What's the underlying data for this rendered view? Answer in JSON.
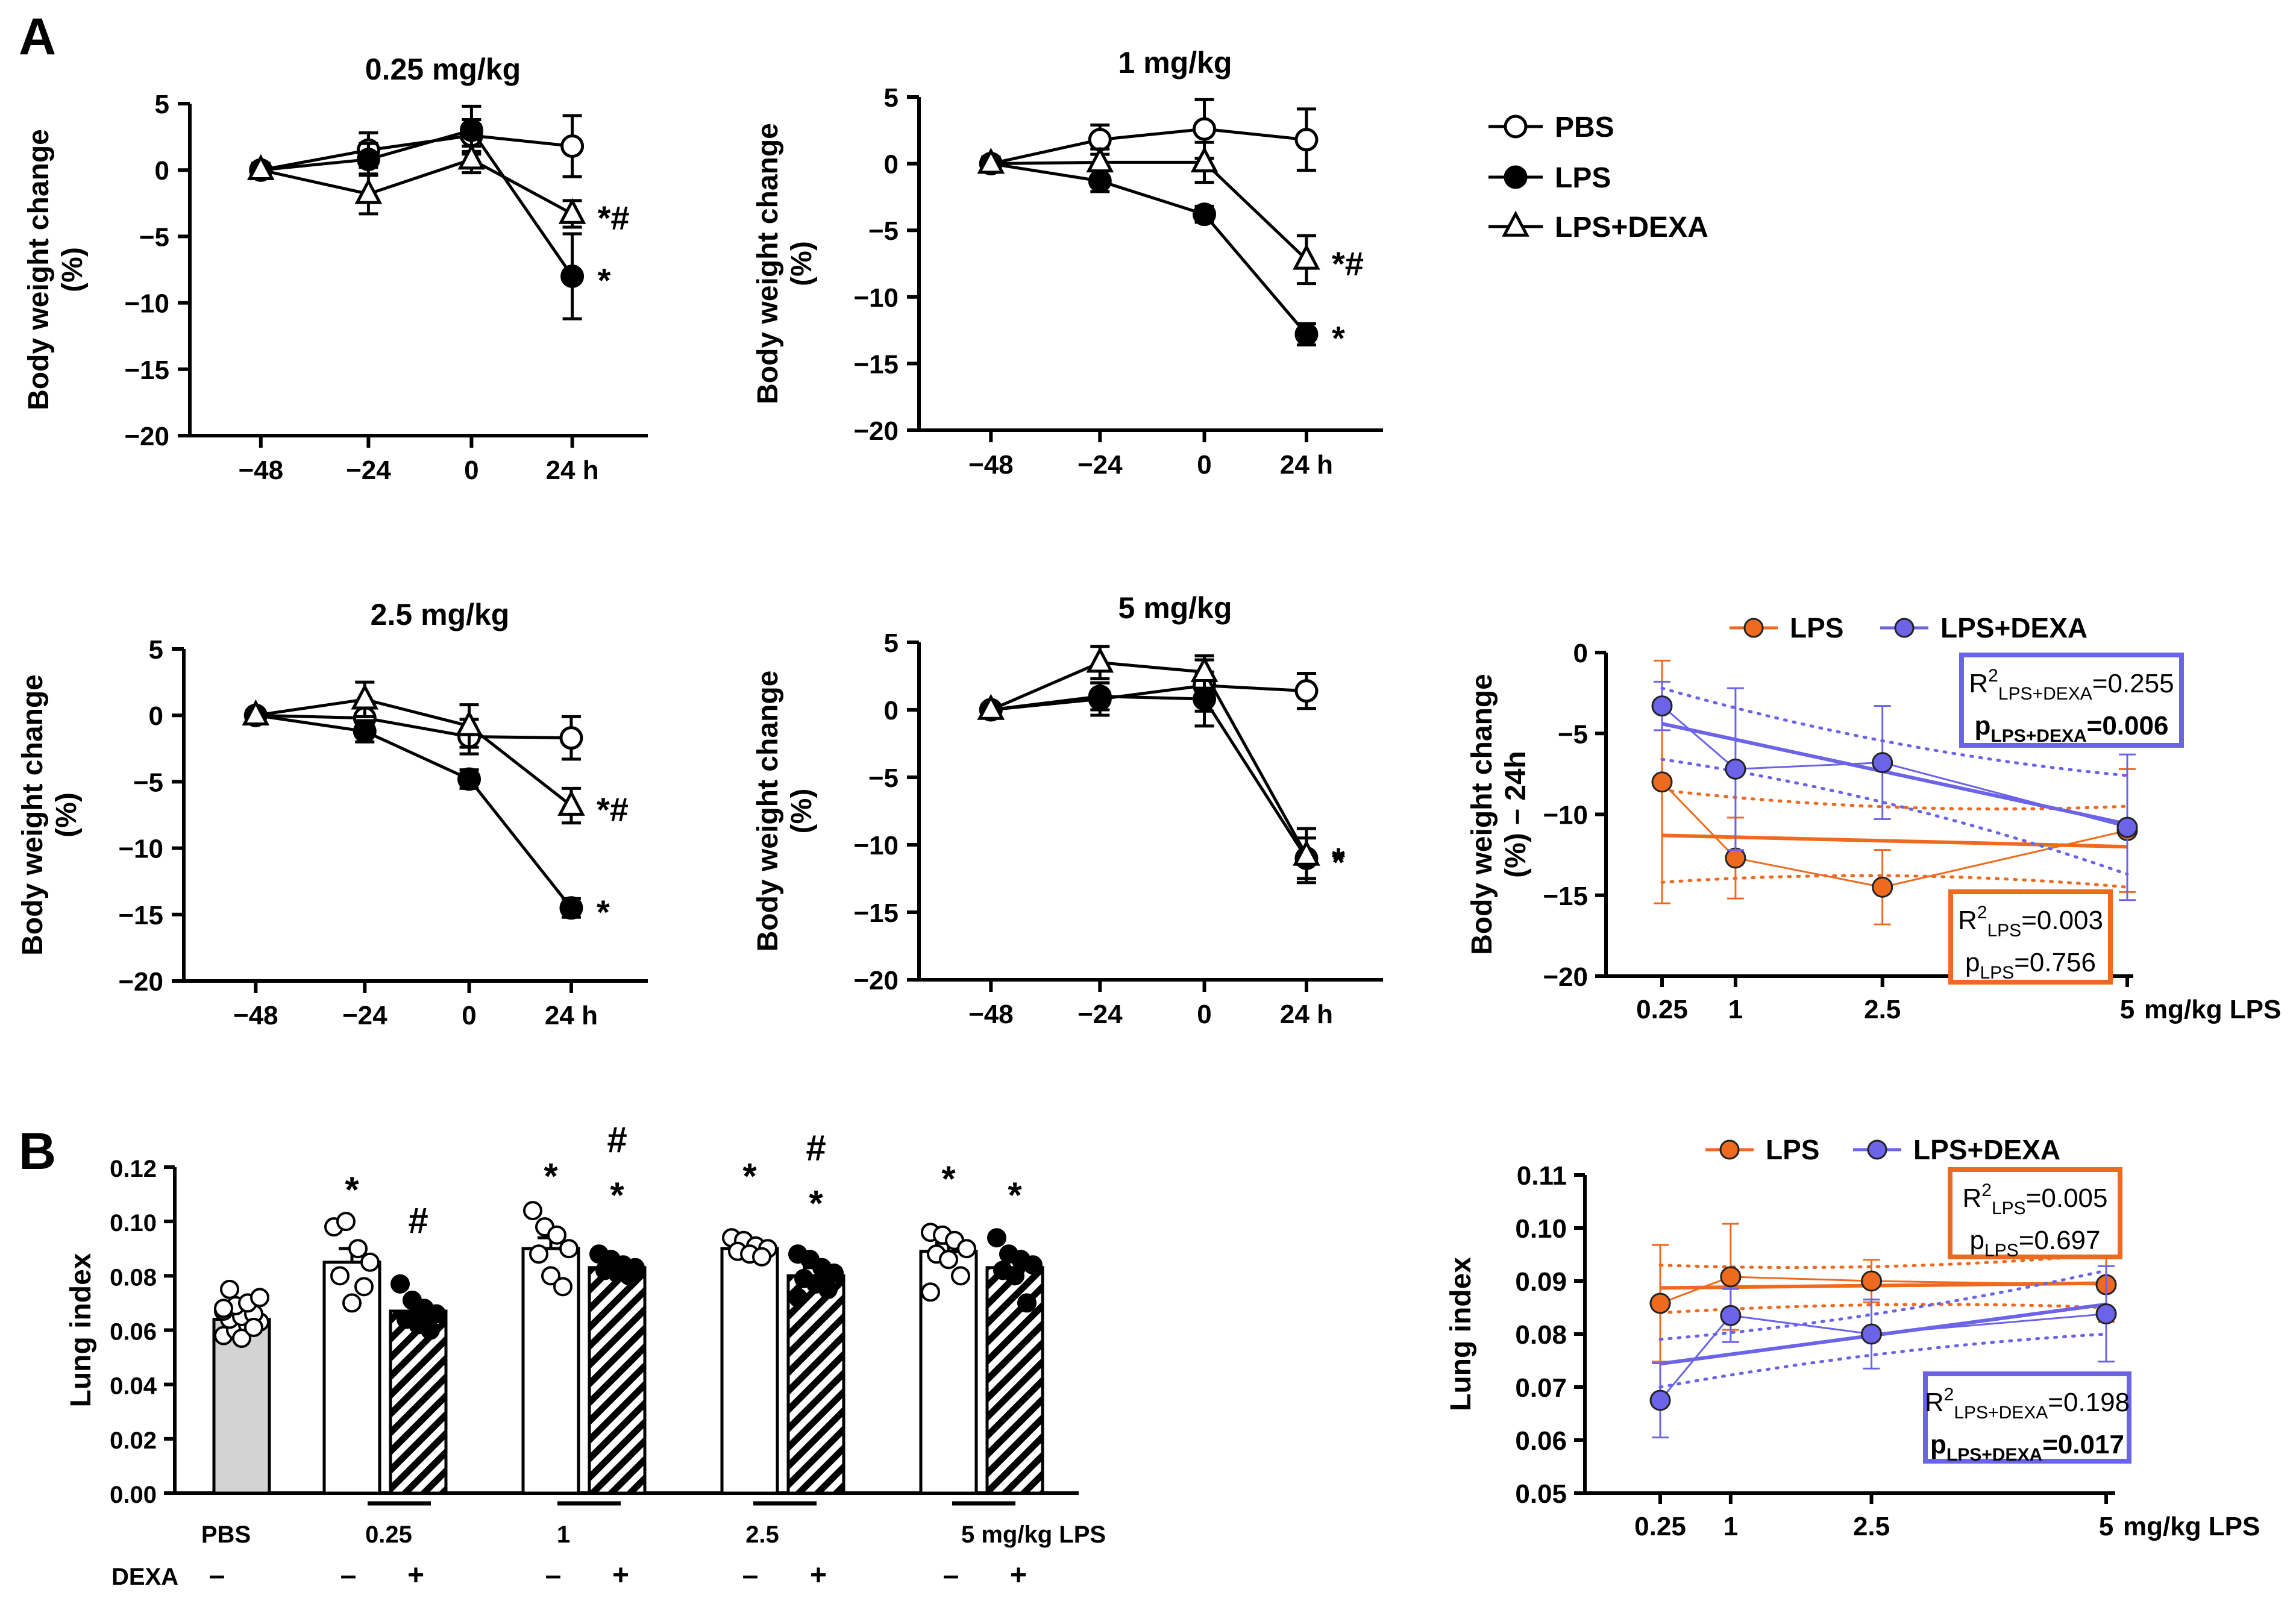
{
  "panel_labels": {
    "a": "A",
    "b": "B"
  },
  "colors": {
    "pbs": "#000000",
    "lps": "#EE6A1F",
    "dexa": "#6B63E8",
    "bar_pbs": "#D3D3D3"
  },
  "legend_main": {
    "pbs": "PBS",
    "lps": "LPS",
    "dexa": "LPS+DEXA"
  },
  "chart_data": [
    {
      "type": "line",
      "title": "0.25 mg/kg",
      "ylabel": "Body weight change",
      "ylabel2": "(%)",
      "ylim": [
        -20,
        5
      ],
      "yticks": [
        "5",
        "0",
        "−5",
        "−10",
        "−15",
        "−20"
      ],
      "ytick_values": [
        5,
        0,
        -5,
        -10,
        -15,
        -20
      ],
      "categories": [
        "−48",
        "−24",
        "0",
        "24 h"
      ],
      "series": [
        {
          "name": "PBS",
          "values": [
            0,
            1.5,
            2.6,
            1.8
          ],
          "err": [
            0.5,
            1.3,
            1.2,
            2.3
          ]
        },
        {
          "name": "LPS",
          "values": [
            0,
            0.8,
            3.0,
            -8.0
          ],
          "err": [
            0.4,
            1.2,
            1.8,
            3.2
          ]
        },
        {
          "name": "LPS+DEXA",
          "values": [
            0,
            -1.8,
            0.8,
            -3.3
          ],
          "err": [
            0.5,
            1.5,
            1.0,
            1.0
          ]
        }
      ],
      "annotations": [
        {
          "text": "*#",
          "series": "LPS+DEXA"
        },
        {
          "text": "*",
          "series": "LPS"
        }
      ]
    },
    {
      "type": "line",
      "title": "1 mg/kg",
      "ylabel": "Body weight change",
      "ylabel2": "(%)",
      "ylim": [
        -20,
        5
      ],
      "yticks": [
        "5",
        "0",
        "−5",
        "−10",
        "−15",
        "−20"
      ],
      "ytick_values": [
        5,
        0,
        -5,
        -10,
        -15,
        -20
      ],
      "categories": [
        "−48",
        "−24",
        "0",
        "24 h"
      ],
      "series": [
        {
          "name": "PBS",
          "values": [
            0,
            1.8,
            2.6,
            1.8
          ],
          "err": [
            0.5,
            1.1,
            2.2,
            2.3
          ]
        },
        {
          "name": "LPS",
          "values": [
            0,
            -1.3,
            -3.8,
            -12.8
          ],
          "err": [
            0.4,
            0.8,
            0.6,
            0.8
          ]
        },
        {
          "name": "LPS+DEXA",
          "values": [
            0,
            0.1,
            0.1,
            -7.2
          ],
          "err": [
            0.5,
            1.0,
            1.5,
            1.8
          ]
        }
      ],
      "annotations": [
        {
          "text": "*#",
          "series": "LPS+DEXA"
        },
        {
          "text": "*",
          "series": "LPS"
        }
      ]
    },
    {
      "type": "line",
      "title": "2.5 mg/kg",
      "ylabel": "Body weight change",
      "ylabel2": "(%)",
      "ylim": [
        -20,
        5
      ],
      "yticks": [
        "5",
        "0",
        "−5",
        "−10",
        "−15",
        "−20"
      ],
      "ytick_values": [
        5,
        0,
        -5,
        -10,
        -15,
        -20
      ],
      "categories": [
        "−48",
        "−24",
        "0",
        "24 h"
      ],
      "series": [
        {
          "name": "PBS",
          "values": [
            0,
            -0.2,
            -1.6,
            -1.7
          ],
          "err": [
            0.4,
            1.0,
            1.3,
            1.6
          ]
        },
        {
          "name": "LPS",
          "values": [
            0,
            -1.2,
            -4.8,
            -14.5
          ],
          "err": [
            0.4,
            0.8,
            0.7,
            0.7
          ]
        },
        {
          "name": "LPS+DEXA",
          "values": [
            0,
            1.2,
            -0.8,
            -6.8
          ],
          "err": [
            0.4,
            1.3,
            1.6,
            1.3
          ]
        }
      ],
      "annotations": [
        {
          "text": "*#",
          "series": "LPS+DEXA"
        },
        {
          "text": "*",
          "series": "LPS"
        }
      ]
    },
    {
      "type": "line",
      "title": "5 mg/kg",
      "ylabel": "Body weight change",
      "ylabel2": "(%)",
      "ylim": [
        -20,
        5
      ],
      "yticks": [
        "5",
        "0",
        "−5",
        "−10",
        "−15",
        "−20"
      ],
      "ytick_values": [
        5,
        0,
        -5,
        -10,
        -15,
        -20
      ],
      "categories": [
        "−48",
        "−24",
        "0",
        "24 h"
      ],
      "series": [
        {
          "name": "PBS",
          "values": [
            0,
            0.8,
            1.8,
            1.4
          ],
          "err": [
            0.4,
            1.2,
            1.9,
            1.3
          ]
        },
        {
          "name": "LPS",
          "values": [
            0,
            1.0,
            0.8,
            -11.0
          ],
          "err": [
            0.4,
            1.0,
            2.0,
            1.5
          ]
        },
        {
          "name": "LPS+DEXA",
          "values": [
            0,
            3.5,
            2.8,
            -10.8
          ],
          "err": [
            0.4,
            1.2,
            1.2,
            2.0
          ]
        }
      ],
      "annotations": [
        {
          "text": "*",
          "series": "LPS+DEXA"
        },
        {
          "text": "*",
          "series": "LPS"
        }
      ]
    },
    {
      "type": "scatter",
      "ylabel": "Body weight change",
      "ylabel2": "(%) – 24h",
      "ylim": [
        -20,
        0
      ],
      "yticks": [
        "0",
        "−5",
        "−10",
        "−15",
        "−20"
      ],
      "ytick_values": [
        0,
        -5,
        -10,
        -15,
        -20
      ],
      "xlim": [
        0.25,
        5
      ],
      "x": [
        0.25,
        1,
        2.5,
        5
      ],
      "xticks": [
        "0.25",
        "1",
        "2.5",
        "5"
      ],
      "xunit": "mg/kg LPS",
      "legend": [
        "LPS",
        "LPS+DEXA"
      ],
      "series": [
        {
          "name": "LPS",
          "values": [
            -8.0,
            -12.7,
            -14.5,
            -11.0
          ],
          "err": [
            7.5,
            2.5,
            2.3,
            3.8
          ],
          "fit": [
            -11.3,
            -12.0
          ],
          "ci_upper": [
            -8.5,
            -9.5
          ],
          "ci_lower": [
            -14.2,
            -14.5
          ]
        },
        {
          "name": "LPS+DEXA",
          "values": [
            -3.3,
            -7.2,
            -6.8,
            -10.8
          ],
          "err": [
            1.5,
            5.0,
            3.5,
            4.5
          ],
          "fit": [
            -4.4,
            -10.6
          ],
          "ci_upper": [
            -2.2,
            -7.6
          ],
          "ci_lower": [
            -6.6,
            -13.7
          ]
        }
      ],
      "stats": {
        "dexa_r2_prefix": "R",
        "dexa_r2_sub": "LPS+DEXA",
        "dexa_r2_value": "=0.255",
        "dexa_p_prefix": "p",
        "dexa_p_sub": "LPS+DEXA",
        "dexa_p_value": "=0.006",
        "lps_r2_prefix": "R",
        "lps_r2_sub": "LPS",
        "lps_r2_value": "=0.003",
        "lps_p_prefix": "p",
        "lps_p_sub": "LPS",
        "lps_p_value": "=0.756"
      }
    },
    {
      "type": "bar",
      "ylabel": "Lung index",
      "ylim": [
        0,
        0.12
      ],
      "yticks": [
        "0.12",
        "0.10",
        "0.08",
        "0.06",
        "0.04",
        "0.02",
        "0.00"
      ],
      "ytick_values": [
        0.12,
        0.1,
        0.08,
        0.06,
        0.04,
        0.02,
        0
      ],
      "groups": [
        "PBS",
        "0.25",
        "1",
        "2.5",
        "5 mg/kg LPS"
      ],
      "dexa_row_label": "DEXA",
      "dexa_signs": [
        "–",
        "–",
        "+",
        "–",
        "+",
        "–",
        "+",
        "–",
        "+"
      ],
      "bars": [
        {
          "group": "PBS",
          "dexa": false,
          "value": 0.064,
          "sem": 0.0015,
          "points": [
            0.058,
            0.06,
            0.062,
            0.063,
            0.064,
            0.065,
            0.066,
            0.067,
            0.069,
            0.07,
            0.072,
            0.075,
            0.057,
            0.061,
            0.068
          ],
          "annotation": ""
        },
        {
          "group": "0.25",
          "dexa": false,
          "value": 0.085,
          "sem": 0.005,
          "points": [
            0.098,
            0.1,
            0.09,
            0.085,
            0.08,
            0.07,
            0.076
          ],
          "annotation": "*"
        },
        {
          "group": "0.25",
          "dexa": true,
          "value": 0.067,
          "sem": 0.002,
          "points": [
            0.077,
            0.071,
            0.068,
            0.066,
            0.064,
            0.062,
            0.06
          ],
          "annotation": "#"
        },
        {
          "group": "1",
          "dexa": false,
          "value": 0.09,
          "sem": 0.004,
          "points": [
            0.104,
            0.098,
            0.095,
            0.09,
            0.088,
            0.08,
            0.076
          ],
          "annotation": "*"
        },
        {
          "group": "1",
          "dexa": true,
          "value": 0.083,
          "sem": 0.002,
          "points": [
            0.088,
            0.086,
            0.084,
            0.083,
            0.082,
            0.081,
            0.08
          ],
          "annotation": "#*"
        },
        {
          "group": "2.5",
          "dexa": false,
          "value": 0.09,
          "sem": 0.002,
          "points": [
            0.094,
            0.093,
            0.091,
            0.09,
            0.089,
            0.088,
            0.087
          ],
          "annotation": "*"
        },
        {
          "group": "2.5",
          "dexa": true,
          "value": 0.08,
          "sem": 0.003,
          "points": [
            0.088,
            0.086,
            0.083,
            0.081,
            0.079,
            0.077,
            0.075,
            0.072
          ],
          "annotation": "#*"
        },
        {
          "group": "5",
          "dexa": false,
          "value": 0.089,
          "sem": 0.003,
          "points": [
            0.096,
            0.095,
            0.093,
            0.09,
            0.088,
            0.086,
            0.08,
            0.074
          ],
          "annotation": "*"
        },
        {
          "group": "5",
          "dexa": true,
          "value": 0.083,
          "sem": 0.003,
          "points": [
            0.094,
            0.088,
            0.086,
            0.084,
            0.082,
            0.08,
            0.07
          ],
          "annotation": "*"
        }
      ]
    },
    {
      "type": "scatter",
      "ylabel": "Lung index",
      "ylim": [
        0.05,
        0.11
      ],
      "yticks": [
        "0.11",
        "0.10",
        "0.09",
        "0.08",
        "0.07",
        "0.06",
        "0.05"
      ],
      "ytick_values": [
        0.11,
        0.1,
        0.09,
        0.08,
        0.07,
        0.06,
        0.05
      ],
      "xlim": [
        0.25,
        5
      ],
      "x": [
        0.25,
        1,
        2.5,
        5
      ],
      "xticks": [
        "0.25",
        "1",
        "2.5",
        "5"
      ],
      "xunit": "mg/kg LPS",
      "legend": [
        "LPS",
        "LPS+DEXA"
      ],
      "series": [
        {
          "name": "LPS",
          "values": [
            0.0858,
            0.0908,
            0.09,
            0.0893
          ],
          "err": [
            0.011,
            0.01,
            0.004,
            0.007
          ],
          "fit": [
            0.0887,
            0.0896
          ],
          "ci_upper": [
            0.093,
            0.095
          ],
          "ci_lower": [
            0.084,
            0.085
          ]
        },
        {
          "name": "LPS+DEXA",
          "values": [
            0.0675,
            0.0835,
            0.08,
            0.0838
          ],
          "err": [
            0.007,
            0.005,
            0.0065,
            0.009
          ],
          "fit": [
            0.0744,
            0.0856
          ],
          "ci_upper": [
            0.079,
            0.092
          ],
          "ci_lower": [
            0.07,
            0.08
          ]
        }
      ],
      "stats": {
        "lps_r2_prefix": "R",
        "lps_r2_sub": "LPS",
        "lps_r2_value": "=0.005",
        "lps_p_prefix": "p",
        "lps_p_sub": "LPS",
        "lps_p_value": "=0.697",
        "dexa_r2_prefix": "R",
        "dexa_r2_sub": "LPS+DEXA",
        "dexa_r2_value": "=0.198",
        "dexa_p_prefix": "p",
        "dexa_p_sub": "LPS+DEXA",
        "dexa_p_value": "=0.017"
      }
    }
  ]
}
